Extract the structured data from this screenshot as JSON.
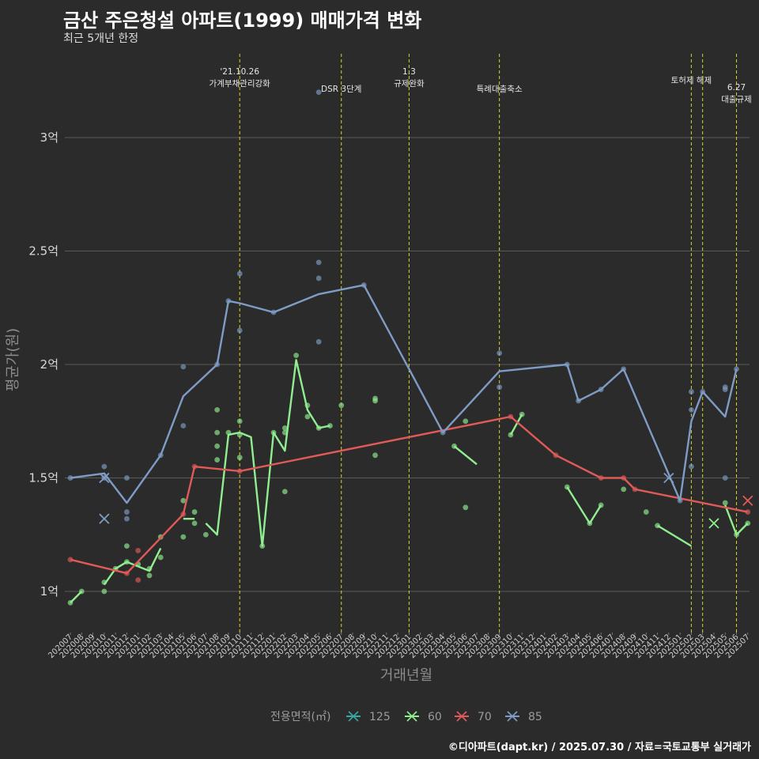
{
  "header": {
    "title": "금산 주은청설 아파트(1999) 매매가격 변화",
    "subtitle": "최근 5개년 한정",
    "caption": "©디아파트(dapt.kr) / 2025.07.30 / 자료=국토교통부 실거래가"
  },
  "chart_data": {
    "type": "line",
    "xlabel": "거래년월",
    "ylabel": "평균가(원)",
    "ylim": [
      0.85,
      3.45
    ],
    "y_ticks": [
      1,
      1.5,
      2,
      2.5,
      3
    ],
    "y_tick_labels": [
      "1억",
      "1.5억",
      "2억",
      "2.5억",
      "3억"
    ],
    "categories": [
      "202007",
      "202008",
      "202009",
      "202010",
      "202011",
      "202012",
      "202101",
      "202102",
      "202103",
      "202104",
      "202105",
      "202106",
      "202107",
      "202108",
      "202109",
      "202110",
      "202111",
      "202112",
      "202201",
      "202202",
      "202203",
      "202204",
      "202205",
      "202206",
      "202207",
      "202208",
      "202209",
      "202210",
      "202211",
      "202212",
      "202301",
      "202302",
      "202303",
      "202304",
      "202305",
      "202306",
      "202307",
      "202308",
      "202309",
      "202310",
      "202311",
      "202312",
      "202401",
      "202402",
      "202403",
      "202404",
      "202405",
      "202406",
      "202407",
      "202408",
      "202409",
      "202410",
      "202411",
      "202412",
      "202501",
      "202502",
      "202503",
      "202504",
      "202505",
      "202506",
      "202507"
    ],
    "legend": {
      "title": "전용면적(㎡)",
      "position": "bottom"
    },
    "series": [
      {
        "name": "125",
        "color": "#3aa6a0",
        "line": [],
        "points": []
      },
      {
        "name": "60",
        "color": "#90ee90",
        "line": [
          [
            0,
            0.95
          ],
          [
            1,
            1.0
          ],
          [
            null,
            null
          ],
          [
            3,
            1.03
          ],
          [
            4,
            1.1
          ],
          [
            5,
            1.13
          ],
          [
            6,
            1.11
          ],
          [
            7,
            1.09
          ],
          [
            8,
            1.19
          ],
          [
            null,
            null
          ],
          [
            10,
            1.32
          ],
          [
            11,
            1.32
          ],
          [
            null,
            null
          ],
          [
            12,
            1.3
          ],
          [
            13,
            1.25
          ],
          [
            14,
            1.69
          ],
          [
            15,
            1.7
          ],
          [
            16,
            1.68
          ],
          [
            17,
            1.2
          ],
          [
            18,
            1.7
          ],
          [
            19,
            1.62
          ],
          [
            20,
            2.02
          ],
          [
            21,
            1.8
          ],
          [
            22,
            1.72
          ],
          [
            23,
            1.73
          ],
          [
            null,
            null
          ],
          [
            34,
            1.64
          ],
          [
            36,
            1.56
          ],
          [
            null,
            null
          ],
          [
            39,
            1.69
          ],
          [
            40,
            1.78
          ],
          [
            null,
            null
          ],
          [
            44,
            1.46
          ],
          [
            46,
            1.3
          ],
          [
            47,
            1.38
          ],
          [
            null,
            null
          ],
          [
            52,
            1.29
          ],
          [
            55,
            1.2
          ],
          [
            null,
            null
          ],
          [
            58,
            1.38
          ],
          [
            59,
            1.25
          ],
          [
            60,
            1.3
          ]
        ],
        "points": [
          [
            0,
            0.95
          ],
          [
            1,
            1.0
          ],
          [
            3,
            1.0
          ],
          [
            3,
            1.04
          ],
          [
            4,
            1.1
          ],
          [
            5,
            1.13
          ],
          [
            5,
            1.2
          ],
          [
            6,
            1.12
          ],
          [
            7,
            1.07
          ],
          [
            7,
            1.1
          ],
          [
            8,
            1.15
          ],
          [
            8,
            1.24
          ],
          [
            10,
            1.24
          ],
          [
            10,
            1.4
          ],
          [
            11,
            1.3
          ],
          [
            11,
            1.35
          ],
          [
            12,
            1.25
          ],
          [
            13,
            1.58
          ],
          [
            13,
            1.64
          ],
          [
            13,
            1.7
          ],
          [
            13,
            1.8
          ],
          [
            14,
            1.7
          ],
          [
            15,
            1.59
          ],
          [
            15,
            1.69
          ],
          [
            15,
            1.75
          ],
          [
            17,
            1.2
          ],
          [
            18,
            1.7
          ],
          [
            19,
            1.44
          ],
          [
            19,
            1.7
          ],
          [
            19,
            1.72
          ],
          [
            20,
            2.04
          ],
          [
            21,
            1.77
          ],
          [
            21,
            1.82
          ],
          [
            22,
            1.72
          ],
          [
            23,
            1.73
          ],
          [
            24,
            1.82
          ],
          [
            27,
            1.84
          ],
          [
            27,
            1.85
          ],
          [
            27,
            1.6
          ],
          [
            34,
            1.64
          ],
          [
            35,
            1.37
          ],
          [
            35,
            1.75
          ],
          [
            39,
            1.69
          ],
          [
            40,
            1.78
          ],
          [
            44,
            1.46
          ],
          [
            46,
            1.3
          ],
          [
            47,
            1.38
          ],
          [
            49,
            1.45
          ],
          [
            51,
            1.35
          ],
          [
            52,
            1.29
          ],
          [
            58,
            1.39
          ],
          [
            59,
            1.25
          ],
          [
            60,
            1.3
          ]
        ],
        "crosses": [
          [
            57,
            1.3
          ]
        ]
      },
      {
        "name": "70",
        "color": "#e05a57",
        "line": [
          [
            0,
            1.14
          ],
          [
            5,
            1.08
          ],
          [
            10,
            1.34
          ],
          [
            11,
            1.55
          ],
          [
            15,
            1.53
          ],
          [
            39,
            1.77
          ],
          [
            43,
            1.6
          ],
          [
            47,
            1.5
          ],
          [
            49,
            1.5
          ],
          [
            50,
            1.45
          ],
          [
            60,
            1.35
          ]
        ],
        "points": [
          [
            0,
            1.14
          ],
          [
            5,
            1.08
          ],
          [
            6,
            1.05
          ],
          [
            6,
            1.18
          ],
          [
            10,
            1.34
          ],
          [
            11,
            1.55
          ],
          [
            15,
            1.53
          ],
          [
            39,
            1.77
          ],
          [
            43,
            1.6
          ],
          [
            47,
            1.5
          ],
          [
            49,
            1.5
          ],
          [
            50,
            1.45
          ],
          [
            60,
            1.35
          ]
        ],
        "crosses": [
          [
            60,
            1.4
          ]
        ]
      },
      {
        "name": "85",
        "color": "#7f9cc6",
        "line": [
          [
            0,
            1.5
          ],
          [
            3,
            1.52
          ],
          [
            5,
            1.39
          ],
          [
            8,
            1.6
          ],
          [
            10,
            1.86
          ],
          [
            13,
            2.0
          ],
          [
            14,
            2.28
          ],
          [
            15,
            2.27
          ],
          [
            18,
            2.23
          ],
          [
            22,
            2.31
          ],
          [
            26,
            2.35
          ],
          [
            30,
            1.98
          ],
          [
            33,
            1.7
          ],
          [
            38,
            1.97
          ],
          [
            44,
            2.0
          ],
          [
            45,
            1.84
          ],
          [
            47,
            1.89
          ],
          [
            49,
            1.98
          ],
          [
            54,
            1.4
          ],
          [
            55,
            1.75
          ],
          [
            56,
            1.88
          ],
          [
            58,
            1.77
          ],
          [
            59,
            1.98
          ]
        ],
        "points": [
          [
            0,
            1.5
          ],
          [
            3,
            1.5
          ],
          [
            3,
            1.55
          ],
          [
            5,
            1.5
          ],
          [
            5,
            1.35
          ],
          [
            5,
            1.32
          ],
          [
            8,
            1.6
          ],
          [
            10,
            1.99
          ],
          [
            10,
            1.73
          ],
          [
            13,
            2.0
          ],
          [
            14,
            2.28
          ],
          [
            15,
            2.4
          ],
          [
            15,
            2.15
          ],
          [
            18,
            2.23
          ],
          [
            22,
            2.45
          ],
          [
            22,
            2.38
          ],
          [
            22,
            2.1
          ],
          [
            22,
            3.2
          ],
          [
            26,
            2.35
          ],
          [
            33,
            1.7
          ],
          [
            38,
            2.05
          ],
          [
            38,
            1.9
          ],
          [
            44,
            2.0
          ],
          [
            45,
            1.84
          ],
          [
            47,
            1.89
          ],
          [
            49,
            1.98
          ],
          [
            54,
            1.4
          ],
          [
            55,
            1.88
          ],
          [
            55,
            1.8
          ],
          [
            55,
            1.55
          ],
          [
            56,
            1.88
          ],
          [
            58,
            1.9
          ],
          [
            58,
            1.89
          ],
          [
            58,
            1.5
          ],
          [
            59,
            1.98
          ]
        ],
        "crosses": [
          [
            3,
            1.32
          ],
          [
            3,
            1.5
          ],
          [
            53,
            1.5
          ]
        ]
      }
    ],
    "annotations": [
      {
        "x": 15,
        "lines": [
          "'21.10.26",
          "가계부채관리강화"
        ],
        "row": 0
      },
      {
        "x": 24,
        "lines": [
          "DSR 3단계"
        ],
        "row": 2
      },
      {
        "x": 30,
        "lines": [
          "1.3",
          "규제완화"
        ],
        "row": 0
      },
      {
        "x": 38,
        "lines": [
          "특례대출축소"
        ],
        "row": 2
      },
      {
        "x": 55,
        "lines": [
          "토허제 해제"
        ],
        "row": 1
      },
      {
        "x": 56,
        "lines": [],
        "row": 1
      },
      {
        "x": 59,
        "lines": [
          "6.27",
          "대출규제"
        ],
        "row": 1.8
      }
    ]
  }
}
